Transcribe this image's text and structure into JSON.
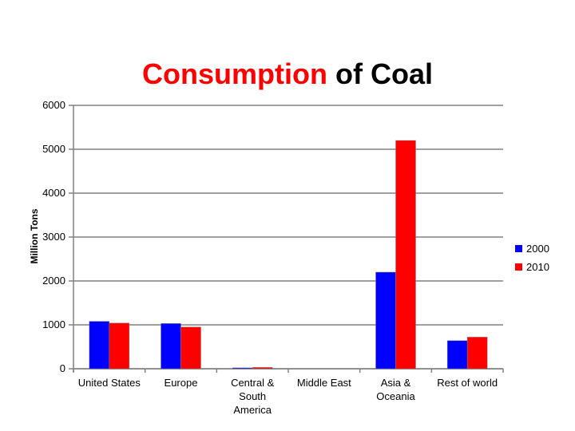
{
  "chart_data": {
    "type": "bar",
    "title_parts": [
      "Consumption",
      "of Coal"
    ],
    "title": "Consumption of Coal",
    "xlabel": "",
    "ylabel": "Million Tons",
    "ylim": [
      0,
      6000
    ],
    "yticks": [
      0,
      1000,
      2000,
      3000,
      4000,
      5000,
      6000
    ],
    "grid": true,
    "legend_position": "right",
    "categories": [
      "United States",
      "Europe",
      "Central & South America",
      "Middle East",
      "Asia & Oceania",
      "Rest of world"
    ],
    "category_lines": [
      [
        "United States"
      ],
      [
        "Europe"
      ],
      [
        "Central &",
        "South",
        "America"
      ],
      [
        "Middle East"
      ],
      [
        "Asia &",
        "Oceania"
      ],
      [
        "Rest of world"
      ]
    ],
    "series": [
      {
        "name": "2000",
        "color": "#0000ff",
        "values": [
          1080,
          1030,
          20,
          0,
          2200,
          640
        ]
      },
      {
        "name": "2010",
        "color": "#ff0000",
        "values": [
          1040,
          950,
          30,
          0,
          5200,
          720
        ]
      }
    ]
  }
}
